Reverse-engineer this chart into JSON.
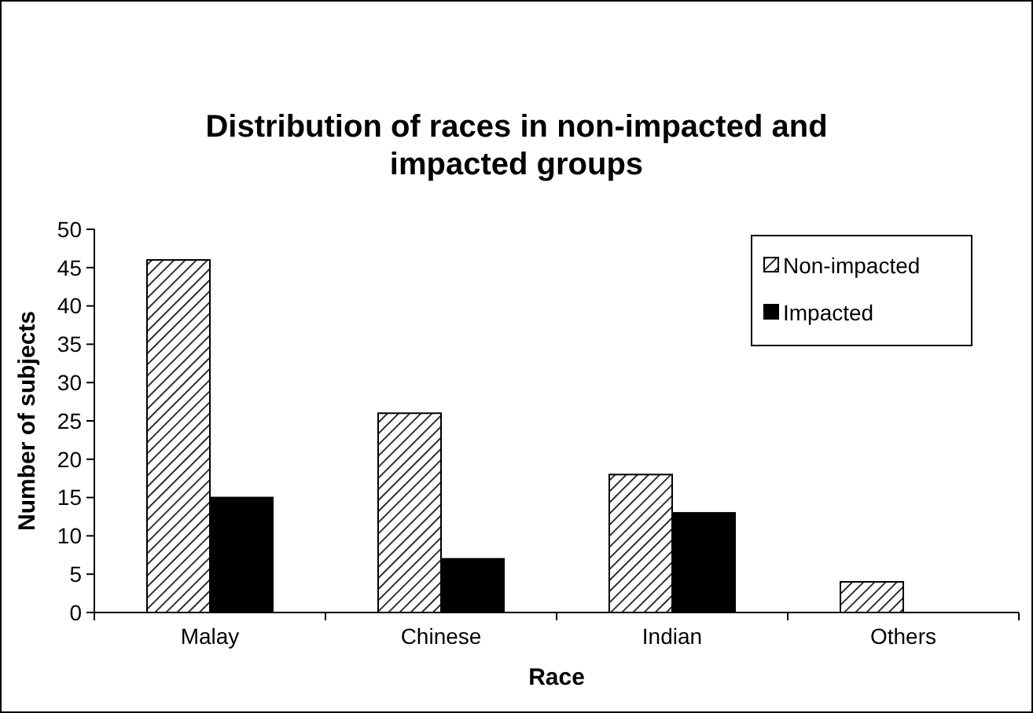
{
  "chart_data": {
    "type": "bar",
    "title": "Distribution of races in non-impacted and impacted groups",
    "xlabel": "Race",
    "ylabel": "Number of subjects",
    "categories": [
      "Malay",
      "Chinese",
      "Indian",
      "Others"
    ],
    "series": [
      {
        "name": "Non-impacted",
        "color": "#000000",
        "values": [
          46,
          26,
          18,
          4
        ]
      },
      {
        "name": "Impacted",
        "color": "#000000",
        "values": [
          15,
          7,
          13,
          0
        ]
      }
    ],
    "ylim": [
      0,
      50
    ],
    "yticks": [
      0,
      5,
      10,
      15,
      20,
      25,
      30,
      35,
      40,
      45,
      50
    ],
    "grid": false,
    "legend": "top right"
  }
}
